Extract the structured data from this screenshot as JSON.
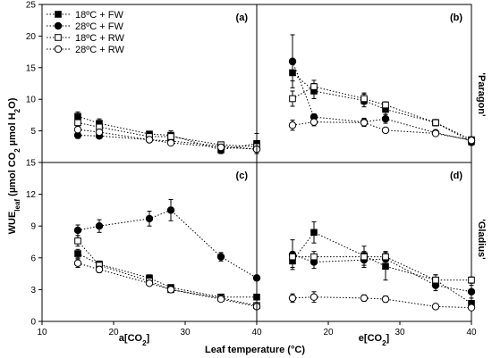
{
  "chart_data": {
    "type": "scatter",
    "ylabel": "WUE_leaf (µmol CO2 µmol H2O)",
    "xlabel": "Leaf temperature (°C)",
    "column_labels": [
      "a[CO2]",
      "e[CO2]"
    ],
    "row_labels": [
      "'Paragon'",
      "'Gladius'"
    ],
    "x_ticks": [
      10,
      20,
      30,
      40
    ],
    "xlim": [
      10,
      40
    ],
    "legend": {
      "position": "top-left",
      "entries": [
        {
          "label": "18ºC + FW",
          "marker": "filled-square"
        },
        {
          "label": "28ºC + FW",
          "marker": "filled-circle"
        },
        {
          "label": "18ºC + RW",
          "marker": "open-square"
        },
        {
          "label": "28ºC + RW",
          "marker": "open-circle"
        }
      ]
    },
    "panels": [
      {
        "label": "(a)",
        "ylim": [
          0,
          25
        ],
        "y_ticks": [
          0,
          5,
          10,
          15,
          20,
          25
        ],
        "series": [
          {
            "name": "18ºC + FW",
            "x": [
              15,
              18,
              25,
              28,
              35,
              40
            ],
            "y": [
              7.3,
              6.2,
              4.5,
              4.3,
              2.0,
              3.0
            ],
            "err": [
              0.7,
              0.7,
              0.4,
              0.7,
              0.6,
              1.6
            ]
          },
          {
            "name": "28ºC + FW",
            "x": [
              15,
              18,
              25,
              28,
              35,
              40
            ],
            "y": [
              4.3,
              4.2,
              3.6,
              3.4,
              2.6,
              2.1
            ],
            "err": [
              0.5,
              0.4,
              0.3,
              0.4,
              0.3,
              0.3
            ]
          },
          {
            "name": "18ºC + RW",
            "x": [
              15,
              18,
              25,
              28,
              35,
              40
            ],
            "y": [
              6.3,
              5.6,
              4.1,
              4.1,
              2.8,
              2.5
            ],
            "err": [
              0.6,
              0.5,
              0.4,
              0.4,
              0.3,
              0.3
            ]
          },
          {
            "name": "28ºC + RW",
            "x": [
              15,
              18,
              25,
              28,
              35,
              40
            ],
            "y": [
              5.2,
              4.8,
              3.6,
              3.1,
              2.4,
              2.1
            ],
            "err": [
              0.5,
              0.4,
              0.3,
              0.3,
              0.3,
              0.3
            ]
          }
        ]
      },
      {
        "label": "(b)",
        "ylim": [
          0,
          25
        ],
        "y_ticks": [
          0,
          5,
          10,
          15,
          20,
          25
        ],
        "series": [
          {
            "name": "18ºC + FW",
            "x": [
              15,
              18,
              25,
              28,
              35,
              40
            ],
            "y": [
              14.2,
              11.3,
              9.8,
              8.4,
              6.3,
              3.3
            ],
            "err": [
              1.3,
              1.2,
              1.0,
              0.8,
              0.5,
              0.6
            ]
          },
          {
            "name": "28ºC + FW",
            "x": [
              15,
              18,
              25,
              28,
              35,
              40
            ],
            "y": [
              16.0,
              7.2,
              6.4,
              6.9,
              4.7,
              3.5
            ],
            "err": [
              4.2,
              0.5,
              0.6,
              0.7,
              0.4,
              0.5
            ]
          },
          {
            "name": "18ºC + RW",
            "x": [
              15,
              18,
              25,
              28,
              35,
              40
            ],
            "y": [
              10.1,
              12.0,
              10.1,
              9.1,
              6.3,
              3.6
            ],
            "err": [
              1.2,
              1.0,
              0.9,
              0.5,
              0.5,
              0.4
            ]
          },
          {
            "name": "28ºC + RW",
            "x": [
              15,
              18,
              25,
              28,
              35,
              40
            ],
            "y": [
              5.9,
              6.4,
              6.3,
              5.1,
              4.6,
              3.5
            ],
            "err": [
              0.8,
              0.6,
              0.6,
              0.3,
              0.4,
              0.3
            ]
          }
        ]
      },
      {
        "label": "(c)",
        "ylim": [
          0,
          15
        ],
        "y_ticks": [
          0,
          3,
          6,
          9,
          12,
          15
        ],
        "series": [
          {
            "name": "18ºC + FW",
            "x": [
              15,
              18,
              25,
              28,
              35,
              40
            ],
            "y": [
              6.4,
              5.4,
              4.1,
              3.2,
              2.3,
              2.3
            ],
            "err": [
              0.4,
              0.3,
              0.3,
              0.2,
              0.2,
              0.2
            ]
          },
          {
            "name": "28ºC + FW",
            "x": [
              15,
              18,
              25,
              28,
              35,
              40
            ],
            "y": [
              8.6,
              9.0,
              9.7,
              10.5,
              6.1,
              4.1
            ],
            "err": [
              0.5,
              0.6,
              0.7,
              1.0,
              0.4,
              0.2
            ]
          },
          {
            "name": "18ºC + RW",
            "x": [
              15,
              18,
              25,
              28,
              35,
              40
            ],
            "y": [
              7.6,
              5.3,
              3.8,
              3.0,
              2.2,
              1.5
            ],
            "err": [
              0.5,
              0.3,
              0.3,
              0.2,
              0.2,
              0.2
            ]
          },
          {
            "name": "28ºC + RW",
            "x": [
              15,
              18,
              25,
              28,
              35,
              40
            ],
            "y": [
              5.5,
              4.9,
              3.6,
              3.0,
              2.1,
              1.4
            ],
            "err": [
              0.4,
              0.3,
              0.2,
              0.2,
              0.2,
              0.2
            ]
          }
        ]
      },
      {
        "label": "(d)",
        "ylim": [
          0,
          15
        ],
        "y_ticks": [
          0,
          3,
          6,
          9,
          12,
          15
        ],
        "series": [
          {
            "name": "18ºC + FW",
            "x": [
              15,
              18,
              25,
              28,
              35,
              40
            ],
            "y": [
              5.7,
              8.4,
              6.2,
              5.2,
              3.9,
              1.7
            ],
            "err": [
              0.6,
              1.0,
              0.9,
              1.3,
              0.5,
              0.2
            ]
          },
          {
            "name": "28ºC + FW",
            "x": [
              15,
              18,
              25,
              28,
              35,
              40
            ],
            "y": [
              6.3,
              5.6,
              5.8,
              5.9,
              3.4,
              2.8
            ],
            "err": [
              1.4,
              0.6,
              0.7,
              0.6,
              0.5,
              0.6
            ]
          },
          {
            "name": "18ºC + RW",
            "x": [
              15,
              18,
              25,
              28,
              35,
              40
            ],
            "y": [
              6.1,
              6.1,
              6.1,
              6.1,
              3.9,
              3.9
            ],
            "err": [
              0.5,
              0.5,
              0.5,
              0.5,
              0.5,
              0.3
            ]
          },
          {
            "name": "28ºC + RW",
            "x": [
              15,
              18,
              25,
              28,
              35,
              40
            ],
            "y": [
              2.2,
              2.3,
              2.2,
              2.1,
              1.4,
              1.3
            ],
            "err": [
              0.4,
              0.5,
              0.3,
              0.3,
              0.2,
              0.2
            ]
          }
        ]
      }
    ]
  }
}
